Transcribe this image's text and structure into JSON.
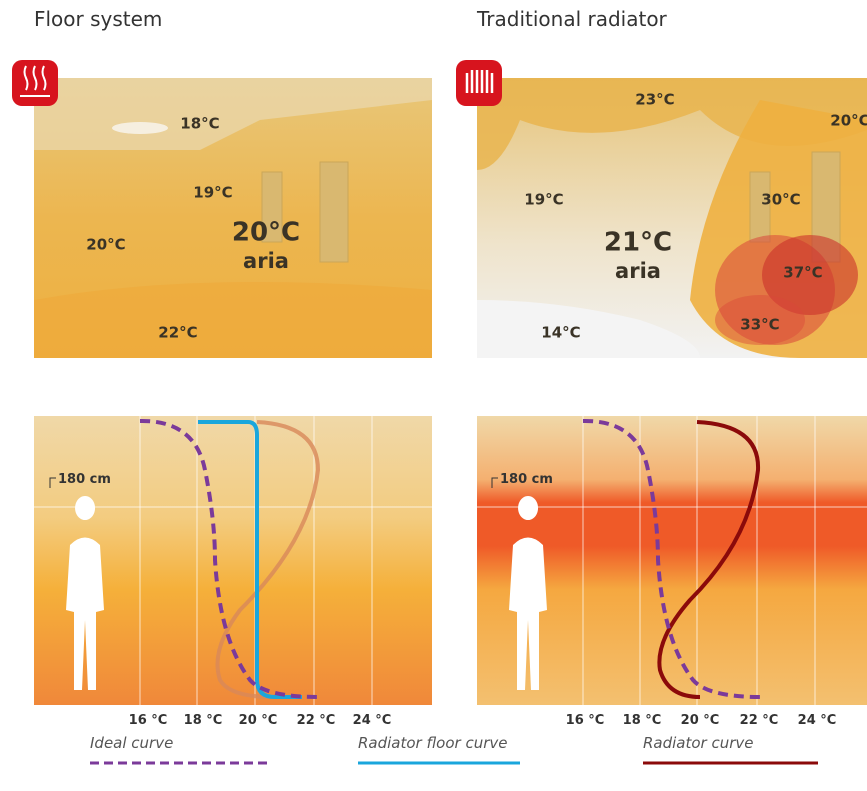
{
  "panels": [
    {
      "title": "Floor system",
      "room_labels": [
        "18°C",
        "19°C",
        "20°C",
        "20°C",
        "aria",
        "22°C"
      ],
      "height_label": "180 cm",
      "axis_labels": [
        "16 °C",
        "18 °C",
        "20 °C",
        "22 °C",
        "24 °C"
      ]
    },
    {
      "title": "Traditional radiator",
      "room_labels": [
        "23°C",
        "20°C",
        "19°C",
        "30°C",
        "21°C",
        "aria",
        "37°C",
        "33°C",
        "14°C"
      ],
      "height_label": "180 cm",
      "axis_labels": [
        "16 °C",
        "18 °C",
        "20 °C",
        "22 °C",
        "24 °C"
      ]
    }
  ],
  "legend": [
    "Ideal curve",
    "Radiator floor curve",
    "Radiator curve"
  ]
}
